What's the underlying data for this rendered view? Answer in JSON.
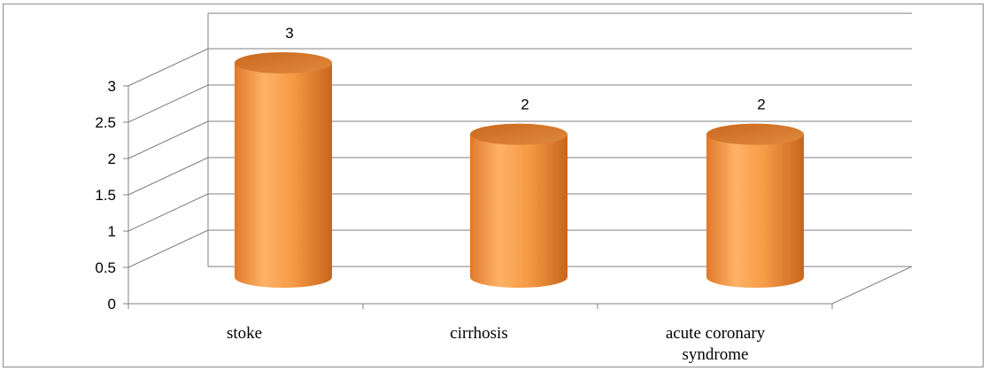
{
  "chart_data": {
    "type": "bar",
    "style": "3d-cylinder",
    "categories": [
      [
        "stoke"
      ],
      [
        "cirrhosis"
      ],
      [
        "acute coronary",
        "syndrome"
      ]
    ],
    "values": [
      3,
      2,
      2
    ],
    "data_labels": [
      "3",
      "2",
      "2"
    ],
    "ylim": [
      0,
      3
    ],
    "yticks": [
      "0",
      "0.5",
      "1",
      "1.5",
      "2",
      "2.5",
      "3"
    ],
    "grid": true,
    "legend": "none",
    "title": "",
    "xlabel": "",
    "ylabel": "",
    "colors": {
      "bar_light": "#ffb266",
      "bar_mid": "#f59a45",
      "bar_dark": "#c8651c",
      "bar_top": "#d4752c",
      "grid": "#808080",
      "axis": "#808080"
    }
  }
}
